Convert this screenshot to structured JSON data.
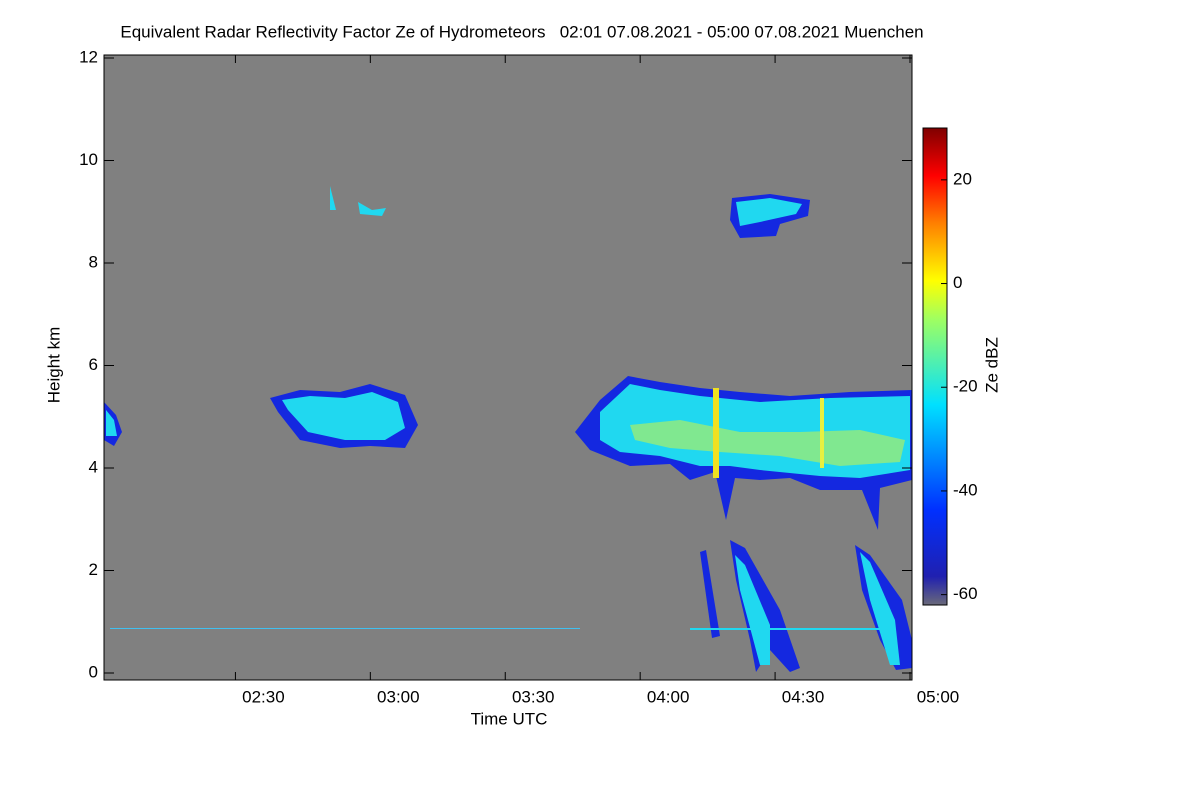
{
  "chart_data": {
    "type": "heatmap",
    "title": "Equivalent Radar Reflectivity Factor Ze of Hydrometeors   02:01 07.08.2021 - 05:00 07.08.2021 Muenchen",
    "x_label": "Time UTC",
    "y_label": "Height km",
    "colorbar_label": "Ze dBZ",
    "xlim": [
      2.016667,
      5
    ],
    "xticks": [
      {
        "value": 2.5,
        "label": "02:30"
      },
      {
        "value": 3,
        "label": "03:00"
      },
      {
        "value": 3.5,
        "label": "03:30"
      },
      {
        "value": 4,
        "label": "04:00"
      },
      {
        "value": 4.5,
        "label": "04:30"
      },
      {
        "value": 5,
        "label": "05:00"
      }
    ],
    "ylim": [
      0,
      12
    ],
    "yticks": [
      0,
      2,
      4,
      6,
      8,
      10,
      12
    ],
    "clim": [
      -62,
      30
    ],
    "cticks": [
      -60,
      -40,
      -20,
      0,
      20
    ]
  }
}
